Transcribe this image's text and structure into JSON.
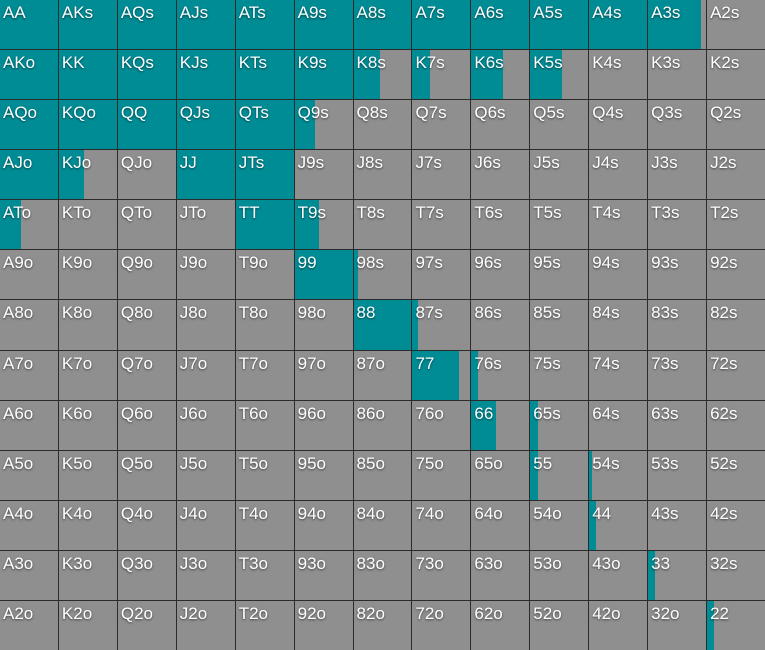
{
  "colors": {
    "raise": "#008c95",
    "fold": "#8f8f8f",
    "border": "#2b2b2b"
  },
  "hands": [
    [
      "AA",
      "AKs",
      "AQs",
      "AJs",
      "ATs",
      "A9s",
      "A8s",
      "A7s",
      "A6s",
      "A5s",
      "A4s",
      "A3s",
      "A2s"
    ],
    [
      "AKo",
      "KK",
      "KQs",
      "KJs",
      "KTs",
      "K9s",
      "K8s",
      "K7s",
      "K6s",
      "K5s",
      "K4s",
      "K3s",
      "K2s"
    ],
    [
      "AQo",
      "KQo",
      "QQ",
      "QJs",
      "QTs",
      "Q9s",
      "Q8s",
      "Q7s",
      "Q6s",
      "Q5s",
      "Q4s",
      "Q3s",
      "Q2s"
    ],
    [
      "AJo",
      "KJo",
      "QJo",
      "JJ",
      "JTs",
      "J9s",
      "J8s",
      "J7s",
      "J6s",
      "J5s",
      "J4s",
      "J3s",
      "J2s"
    ],
    [
      "ATo",
      "KTo",
      "QTo",
      "JTo",
      "TT",
      "T9s",
      "T8s",
      "T7s",
      "T6s",
      "T5s",
      "T4s",
      "T3s",
      "T2s"
    ],
    [
      "A9o",
      "K9o",
      "Q9o",
      "J9o",
      "T9o",
      "99",
      "98s",
      "97s",
      "96s",
      "95s",
      "94s",
      "93s",
      "92s"
    ],
    [
      "A8o",
      "K8o",
      "Q8o",
      "J8o",
      "T8o",
      "98o",
      "88",
      "87s",
      "86s",
      "85s",
      "84s",
      "83s",
      "82s"
    ],
    [
      "A7o",
      "K7o",
      "Q7o",
      "J7o",
      "T7o",
      "97o",
      "87o",
      "77",
      "76s",
      "75s",
      "74s",
      "73s",
      "72s"
    ],
    [
      "A6o",
      "K6o",
      "Q6o",
      "J6o",
      "T6o",
      "96o",
      "86o",
      "76o",
      "66",
      "65s",
      "64s",
      "63s",
      "62s"
    ],
    [
      "A5o",
      "K5o",
      "Q5o",
      "J5o",
      "T5o",
      "95o",
      "85o",
      "75o",
      "65o",
      "55",
      "54s",
      "53s",
      "52s"
    ],
    [
      "A4o",
      "K4o",
      "Q4o",
      "J4o",
      "T4o",
      "94o",
      "84o",
      "74o",
      "64o",
      "54o",
      "44",
      "43s",
      "42s"
    ],
    [
      "A3o",
      "K3o",
      "Q3o",
      "J3o",
      "T3o",
      "93o",
      "83o",
      "73o",
      "63o",
      "53o",
      "43o",
      "33",
      "32s"
    ],
    [
      "A2o",
      "K2o",
      "Q2o",
      "J2o",
      "T2o",
      "92o",
      "82o",
      "72o",
      "62o",
      "52o",
      "42o",
      "32o",
      "22"
    ]
  ],
  "raise_fraction": [
    [
      1,
      1,
      1,
      1,
      1,
      1,
      1,
      1,
      1,
      1,
      1,
      0.92,
      0
    ],
    [
      1,
      1,
      1,
      1,
      1,
      1,
      0.46,
      0.3,
      0.55,
      0.55,
      0,
      0,
      0
    ],
    [
      1,
      1,
      1,
      1,
      1,
      0.36,
      0,
      0,
      0,
      0,
      0,
      0,
      0
    ],
    [
      1,
      0.43,
      0,
      1,
      1,
      0,
      0,
      0,
      0,
      0,
      0,
      0,
      0
    ],
    [
      0.37,
      0,
      0,
      0,
      1,
      0.42,
      0,
      0,
      0,
      0,
      0,
      0,
      0
    ],
    [
      0,
      0,
      0,
      0,
      0,
      1,
      0.07,
      0,
      0,
      0,
      0,
      0,
      0
    ],
    [
      0,
      0,
      0,
      0,
      0,
      0,
      1,
      0.1,
      0,
      0,
      0,
      0,
      0
    ],
    [
      0,
      0,
      0,
      0,
      0,
      0,
      0,
      0.8,
      0.12,
      0,
      0,
      0,
      0
    ],
    [
      0,
      0,
      0,
      0,
      0,
      0,
      0,
      0,
      0.42,
      0.14,
      0,
      0,
      0
    ],
    [
      0,
      0,
      0,
      0,
      0,
      0,
      0,
      0,
      0,
      0.14,
      0.05,
      0,
      0
    ],
    [
      0,
      0,
      0,
      0,
      0,
      0,
      0,
      0,
      0,
      0,
      0.12,
      0,
      0
    ],
    [
      0,
      0,
      0,
      0,
      0,
      0,
      0,
      0,
      0,
      0,
      0,
      0.12,
      0
    ],
    [
      0,
      0,
      0,
      0,
      0,
      0,
      0,
      0,
      0,
      0,
      0,
      0,
      0.12
    ]
  ]
}
